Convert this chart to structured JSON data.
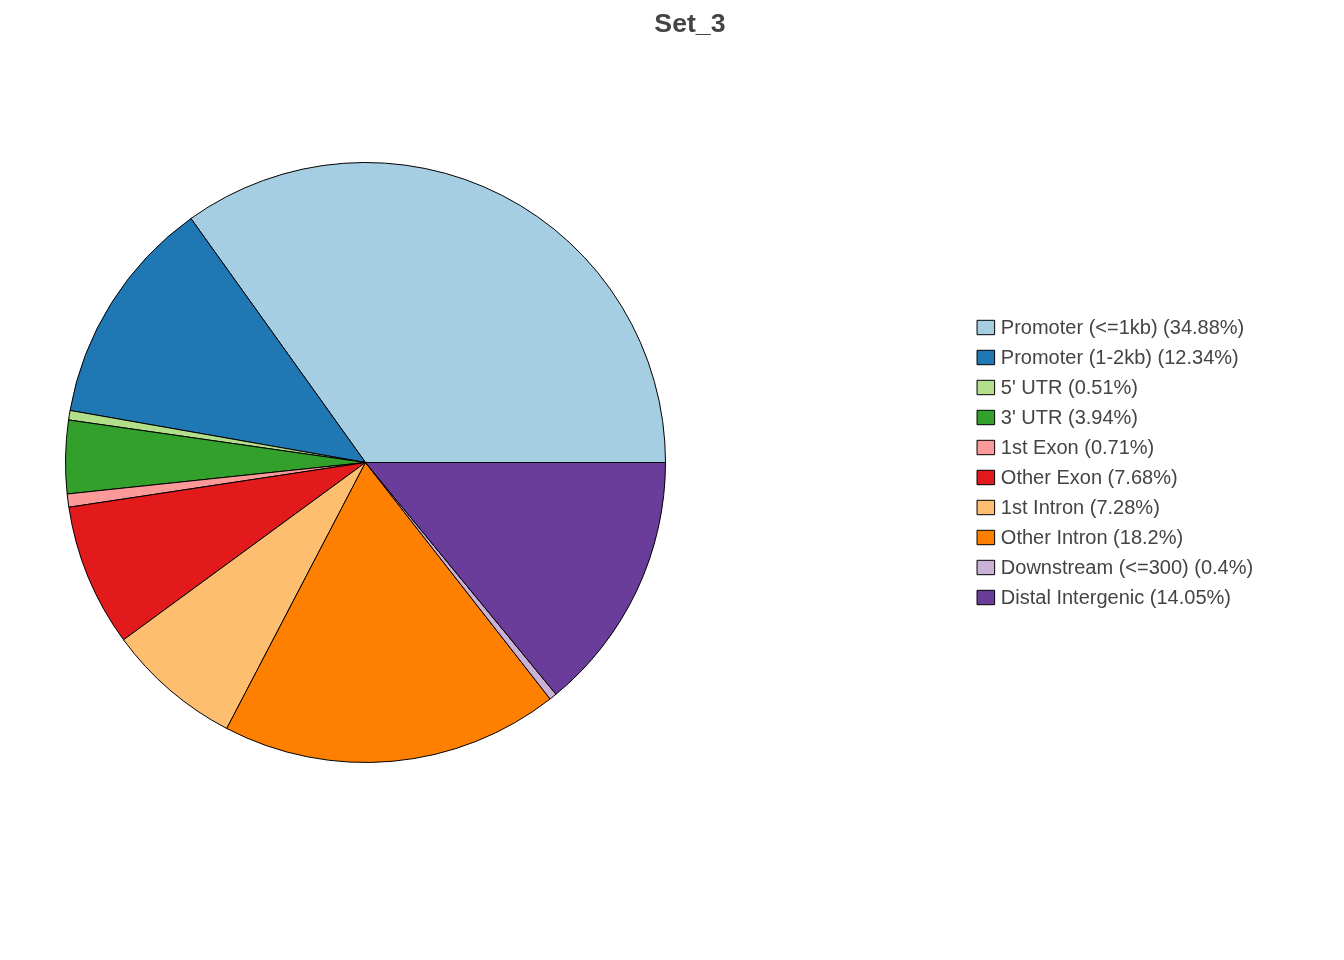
{
  "chart_data": {
    "type": "pie",
    "title": "Set_3",
    "categories": [
      "Promoter (<=1kb) (34.88%)",
      "Promoter (1-2kb) (12.34%)",
      "5' UTR (0.51%)",
      "3' UTR (3.94%)",
      "1st Exon (0.71%)",
      "Other Exon (7.68%)",
      "1st Intron (7.28%)",
      "Other Intron (18.2%)",
      "Downstream (<=300) (0.4%)",
      "Distal Intergenic (14.05%)"
    ],
    "values": [
      34.88,
      12.34,
      0.51,
      3.94,
      0.71,
      7.68,
      7.28,
      18.2,
      0.4,
      14.05
    ],
    "colors": [
      "#a6cee3",
      "#1f78b4",
      "#b2df8a",
      "#33a02c",
      "#fb9a99",
      "#e31a1c",
      "#fdbf6f",
      "#ff7f00",
      "#cab2d6",
      "#6a3d9a"
    ],
    "legend": "right"
  }
}
